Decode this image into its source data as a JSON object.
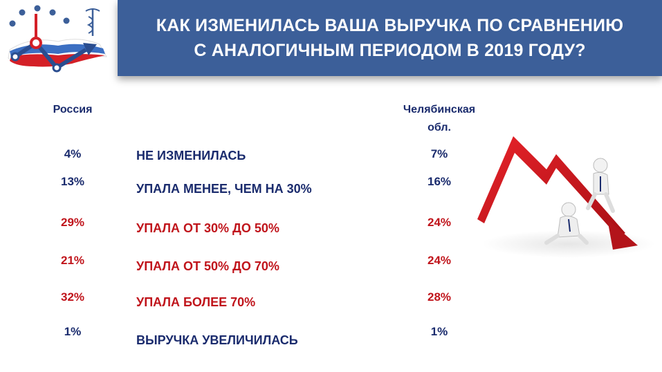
{
  "header": {
    "title_line1": "КАК ИЗМЕНИЛАСЬ ВАША ВЫРУЧКА ПО СРАВНЕНИЮ",
    "title_line2": "С АНАЛОГИЧНЫМ ПЕРИОДОМ В 2019 ГОДУ?"
  },
  "columns": {
    "russia": "Россия",
    "chelyabinsk_line1": "Челябинская",
    "chelyabinsk_line2": "обл."
  },
  "rows": [
    {
      "label": "НЕ ИЗМЕНИЛАСЬ",
      "russia": "4%",
      "chelyabinsk": "7%",
      "color": "#1a2b6d"
    },
    {
      "label": "УПАЛА МЕНЕЕ, ЧЕМ НА 30%",
      "russia": "13%",
      "chelyabinsk": "16%",
      "color": "#1a2b6d"
    },
    {
      "label": "УПАЛА ОТ 30% ДО 50%",
      "russia": "29%",
      "chelyabinsk": "24%",
      "color": "#c0141b"
    },
    {
      "label": "УПАЛА ОТ 50% ДО 70%",
      "russia": "21%",
      "chelyabinsk": "24%",
      "color": "#c0141b"
    },
    {
      "label": "УПАЛА БОЛЕЕ 70%",
      "russia": "32%",
      "chelyabinsk": "28%",
      "color": "#c0141b"
    },
    {
      "label": "ВЫРУЧКА УВЕЛИЧИЛАСЬ",
      "russia": "1%",
      "chelyabinsk": "1%",
      "color": "#1a2b6d"
    }
  ],
  "icons": {
    "logo": "russia-growth-chart-logo",
    "illustration": "falling-arrow-with-figures"
  }
}
